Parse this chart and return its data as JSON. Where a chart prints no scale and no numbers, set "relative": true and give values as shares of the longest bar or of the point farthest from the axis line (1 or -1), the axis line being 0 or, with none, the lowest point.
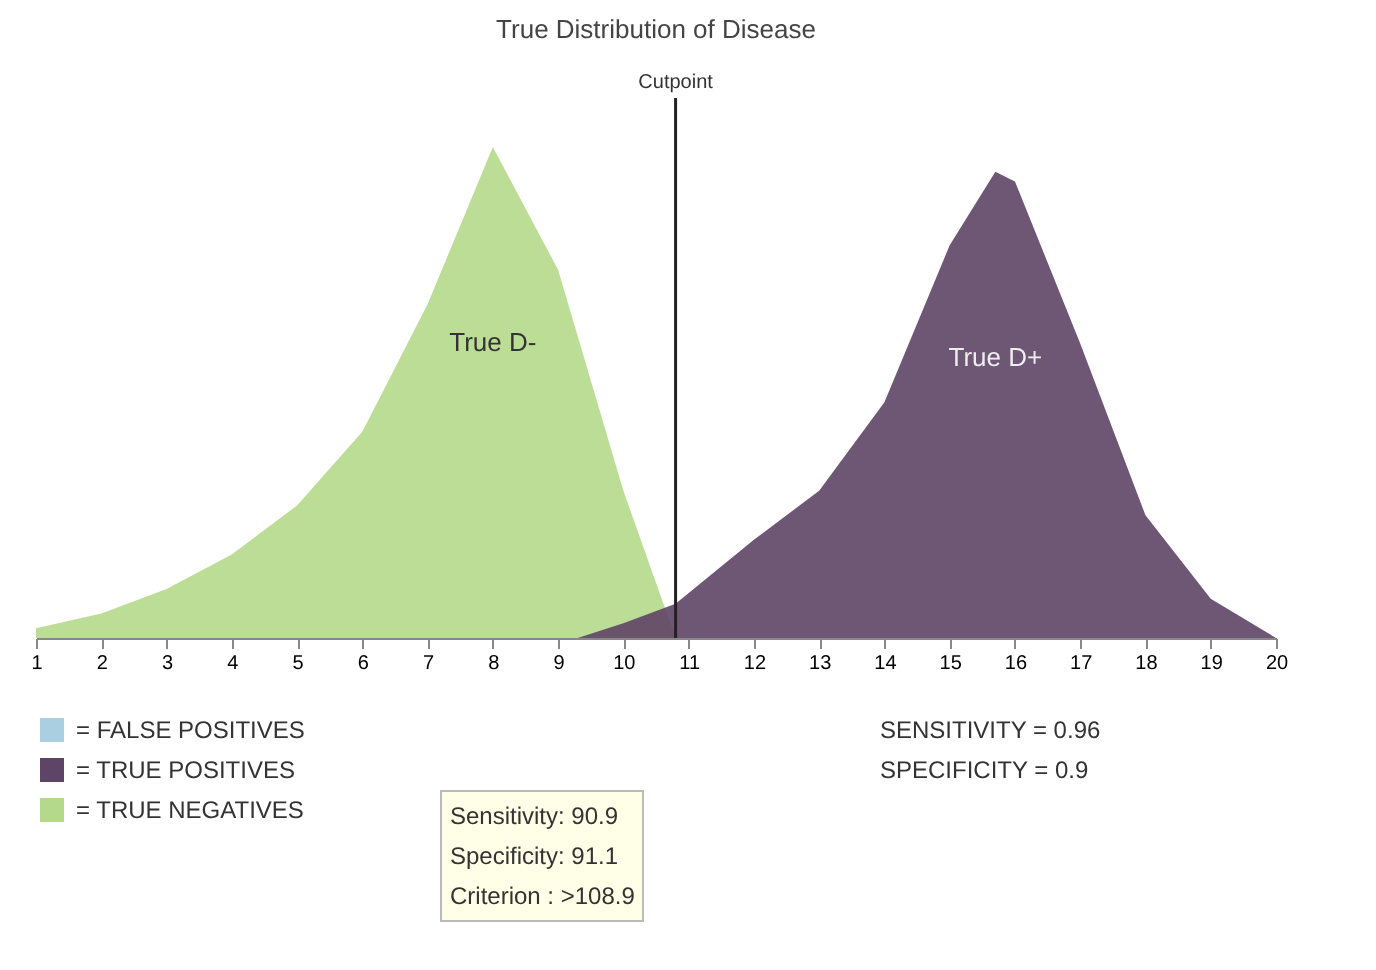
{
  "chart_data": {
    "type": "area",
    "title": "True Distribution of Disease",
    "relative": true,
    "xlim": [
      1,
      20
    ],
    "xticks": [
      1,
      2,
      3,
      4,
      5,
      6,
      7,
      8,
      9,
      10,
      11,
      12,
      13,
      14,
      15,
      16,
      17,
      18,
      19,
      20
    ],
    "series": [
      {
        "name": "True D-",
        "color": "#b5d98a",
        "x": [
          1,
          2,
          3,
          4,
          5,
          6,
          7,
          8,
          9,
          10,
          10.8
        ],
        "values": [
          0.02,
          0.05,
          0.1,
          0.17,
          0.27,
          0.42,
          0.68,
          1.0,
          0.75,
          0.3,
          0
        ]
      },
      {
        "name": "True D+",
        "color": "#5e4466",
        "x": [
          9.3,
          10,
          10.8,
          12,
          13,
          14,
          15,
          15.7,
          16,
          17,
          18,
          19,
          20
        ],
        "values": [
          0,
          0.03,
          0.07,
          0.2,
          0.3,
          0.48,
          0.8,
          0.95,
          0.93,
          0.6,
          0.25,
          0.08,
          0
        ]
      }
    ],
    "ref_lines": [
      {
        "axis": "x",
        "value": 10.8,
        "label": "Cutpoint"
      }
    ],
    "annotations": [
      "= FALSE POSITIVES",
      "= TRUE POSITIVES",
      "= TRUE NEGATIVES",
      "SENSITIVITY = 0.96",
      "SPECIFICITY = 0.9",
      "Sensitivity: 90.9",
      "Specificity: 91.1",
      "Criterion : >108.9"
    ]
  }
}
